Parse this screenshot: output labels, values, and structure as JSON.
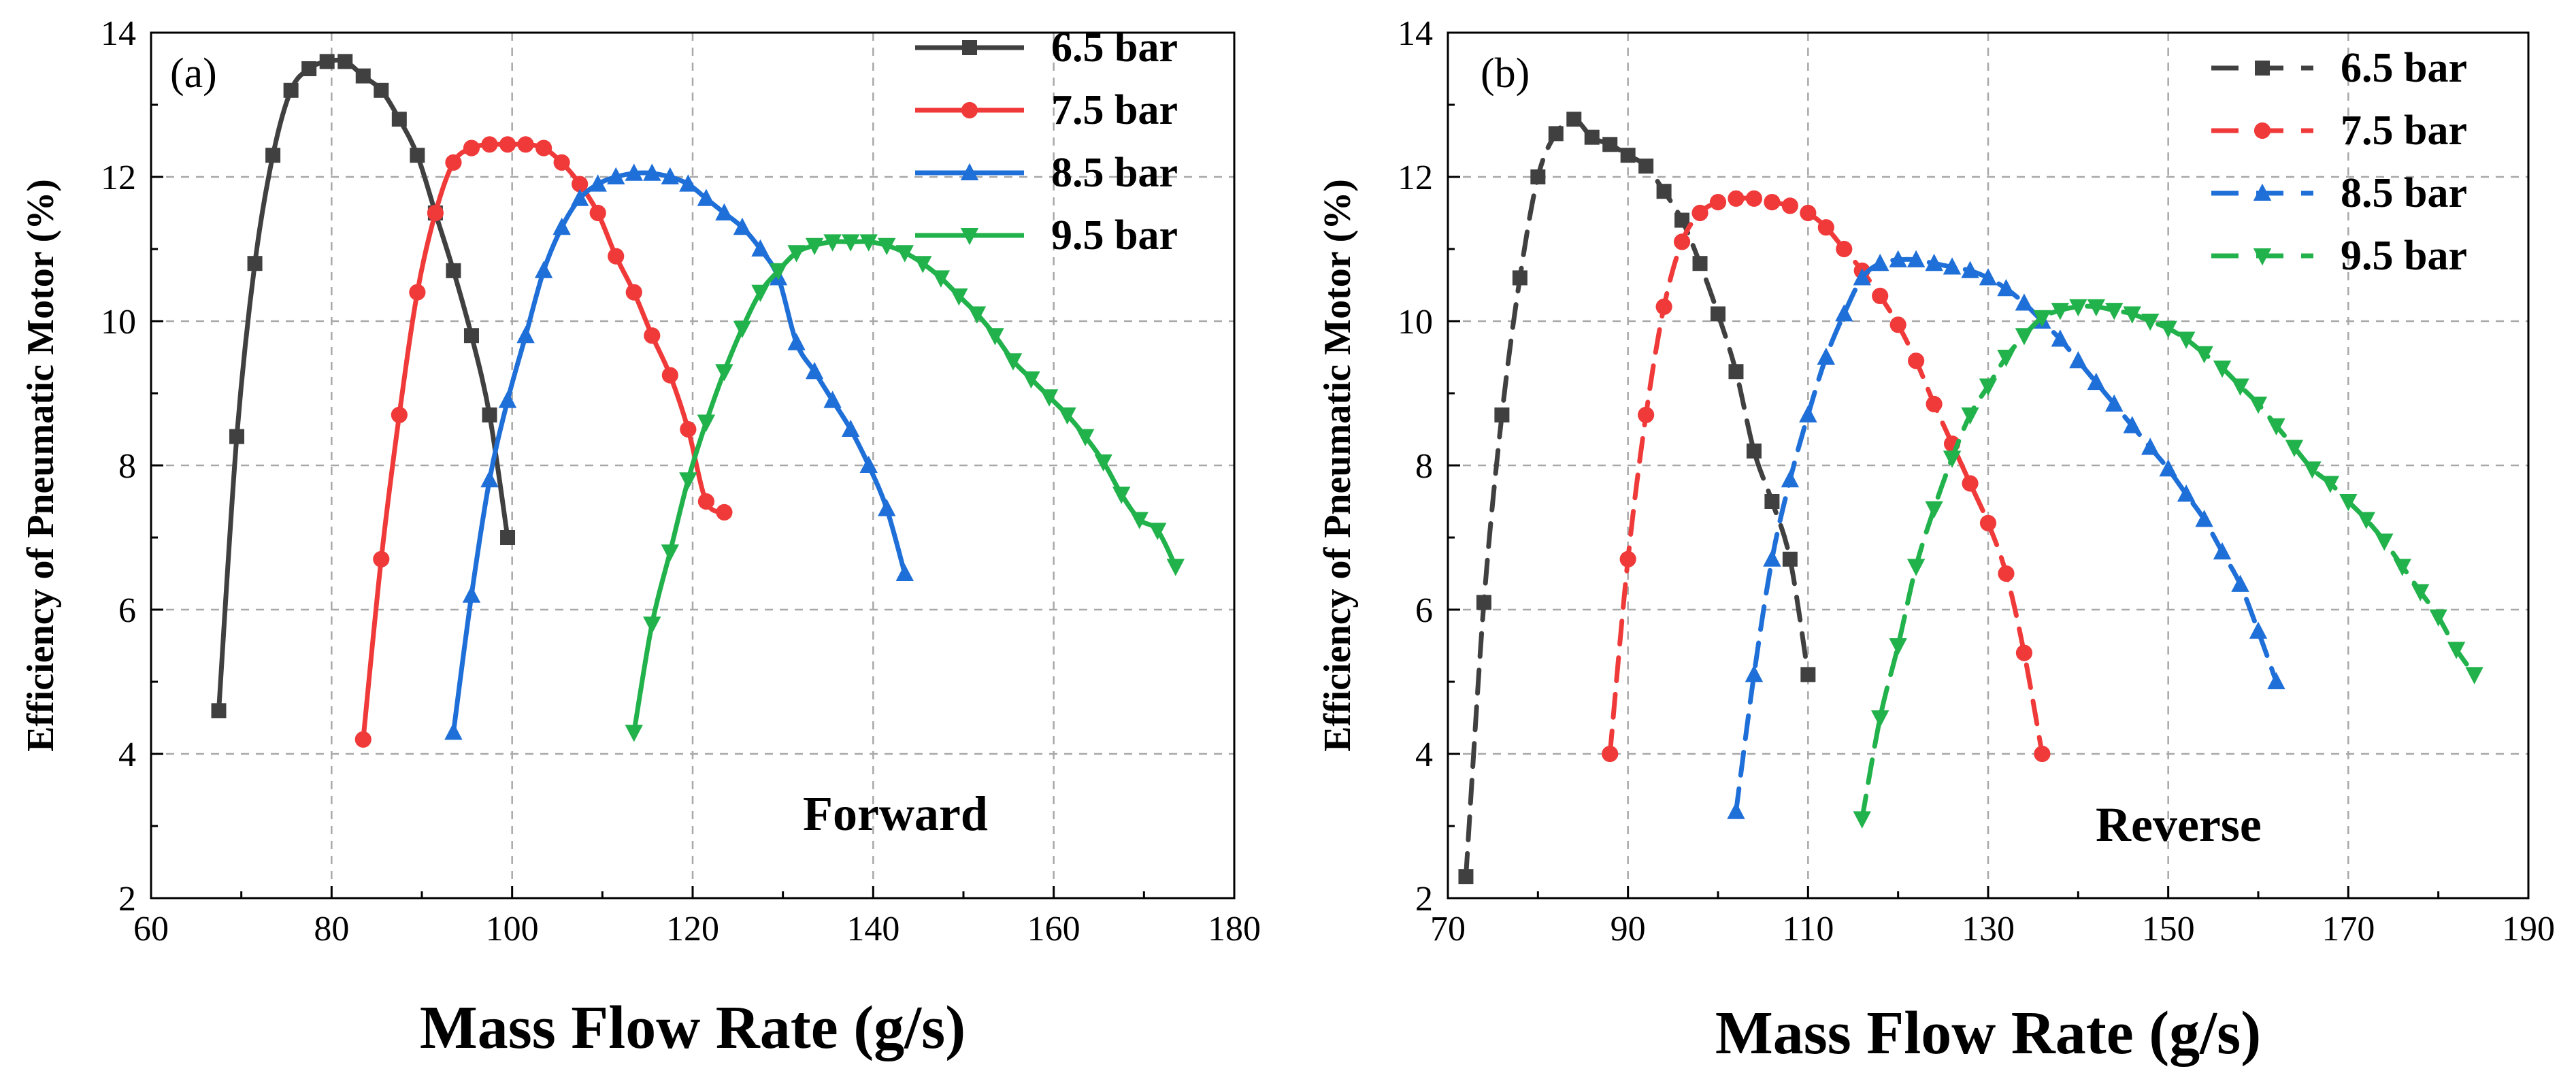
{
  "figure": {
    "panels": [
      "(a)",
      "(b)"
    ]
  },
  "chart_data": [
    {
      "type": "line",
      "panel_label": "(a)",
      "annotation": "Forward",
      "line_style": "solid",
      "xlabel": "Mass Flow Rate (g/s)",
      "ylabel": "Efficiency of Pneumatic Motor (%)",
      "xlim": [
        60,
        180
      ],
      "ylim": [
        2,
        14
      ],
      "xticks": [
        60,
        80,
        100,
        120,
        140,
        160,
        180
      ],
      "xtick_labels": [
        "60",
        "80",
        "100",
        "120",
        "140",
        "160",
        "180"
      ],
      "yticks": [
        2,
        4,
        6,
        8,
        10,
        12,
        14
      ],
      "ytick_labels": [
        "2",
        "4",
        "6",
        "8",
        "10",
        "12",
        "14"
      ],
      "grid": "dashed",
      "legend_position": "top-right",
      "series": [
        {
          "name": "6.5 bar",
          "color": "#404040",
          "marker": "square",
          "x": [
            67.5,
            69.5,
            71.5,
            73.5,
            75.5,
            77.5,
            79.5,
            81.5,
            83.5,
            85.5,
            87.5,
            89.5,
            91.5,
            93.5,
            95.5,
            97.5,
            99.5
          ],
          "y": [
            4.6,
            8.4,
            10.8,
            12.3,
            13.2,
            13.5,
            13.6,
            13.6,
            13.4,
            13.2,
            12.8,
            12.3,
            11.5,
            10.7,
            9.8,
            8.7,
            7.0
          ]
        },
        {
          "name": "7.5 bar",
          "color": "#f03a3a",
          "marker": "circle",
          "x": [
            83.5,
            85.5,
            87.5,
            89.5,
            91.5,
            93.5,
            95.5,
            97.5,
            99.5,
            101.5,
            103.5,
            105.5,
            107.5,
            109.5,
            111.5,
            113.5,
            115.5,
            117.5,
            119.5,
            121.5,
            123.5
          ],
          "y": [
            4.2,
            6.7,
            8.7,
            10.4,
            11.5,
            12.2,
            12.4,
            12.45,
            12.45,
            12.45,
            12.4,
            12.2,
            11.9,
            11.5,
            10.9,
            10.4,
            9.8,
            9.25,
            8.5,
            7.5,
            7.35
          ]
        },
        {
          "name": "8.5 bar",
          "color": "#1f6fd8",
          "marker": "triangle-up",
          "x": [
            93.5,
            95.5,
            97.5,
            99.5,
            101.5,
            103.5,
            105.5,
            107.5,
            109.5,
            111.5,
            113.5,
            115.5,
            117.5,
            119.5,
            121.5,
            123.5,
            125.5,
            127.5,
            129.5,
            131.5,
            133.5,
            135.5,
            137.5,
            139.5,
            141.5,
            143.5
          ],
          "y": [
            4.3,
            6.2,
            7.8,
            8.9,
            9.8,
            10.7,
            11.3,
            11.7,
            11.9,
            12.0,
            12.05,
            12.05,
            12.0,
            11.9,
            11.7,
            11.5,
            11.3,
            11.0,
            10.6,
            9.7,
            9.3,
            8.9,
            8.5,
            8.0,
            7.4,
            6.5
          ]
        },
        {
          "name": "9.5 bar",
          "color": "#21b24b",
          "marker": "triangle-down",
          "x": [
            113.5,
            115.5,
            117.5,
            119.5,
            121.5,
            123.5,
            125.5,
            127.5,
            129.5,
            131.5,
            133.5,
            135.5,
            137.5,
            139.5,
            141.5,
            143.5,
            145.5,
            147.5,
            149.5,
            151.5,
            153.5,
            155.5,
            157.5,
            159.5,
            161.5,
            163.5,
            165.5,
            167.5,
            169.5,
            171.5,
            173.5
          ],
          "y": [
            4.3,
            5.8,
            6.8,
            7.8,
            8.6,
            9.3,
            9.9,
            10.4,
            10.7,
            10.95,
            11.05,
            11.1,
            11.1,
            11.1,
            11.05,
            10.95,
            10.8,
            10.6,
            10.35,
            10.1,
            9.8,
            9.45,
            9.2,
            8.95,
            8.7,
            8.4,
            8.05,
            7.6,
            7.25,
            7.1,
            6.6
          ]
        }
      ]
    },
    {
      "type": "line",
      "panel_label": "(b)",
      "annotation": "Reverse",
      "line_style": "dashed",
      "xlabel": "Mass Flow Rate (g/s)",
      "ylabel": "Efficiency of Pneumatic Motor (%)",
      "xlim": [
        70,
        190
      ],
      "ylim": [
        2,
        14
      ],
      "xticks": [
        70,
        90,
        110,
        130,
        150,
        170,
        190
      ],
      "xtick_labels": [
        "70",
        "90",
        "110",
        "130",
        "150",
        "170",
        "190"
      ],
      "yticks": [
        2,
        4,
        6,
        8,
        10,
        12,
        14
      ],
      "ytick_labels": [
        "2",
        "4",
        "6",
        "8",
        "10",
        "12",
        "14"
      ],
      "grid": "dashed",
      "legend_position": "top-right",
      "series": [
        {
          "name": "6.5 bar",
          "color": "#404040",
          "marker": "square",
          "x": [
            72,
            74,
            76,
            78,
            80,
            82,
            84,
            86,
            88,
            90,
            92,
            94,
            96,
            98,
            100,
            102,
            104,
            106,
            108,
            110
          ],
          "y": [
            2.3,
            6.1,
            8.7,
            10.6,
            12.0,
            12.6,
            12.8,
            12.55,
            12.45,
            12.3,
            12.15,
            11.8,
            11.4,
            10.8,
            10.1,
            9.3,
            8.2,
            7.5,
            6.7,
            5.1
          ]
        },
        {
          "name": "7.5 bar",
          "color": "#f03a3a",
          "marker": "circle",
          "x": [
            88,
            90,
            92,
            94,
            96,
            98,
            100,
            102,
            104,
            106,
            108,
            110,
            112,
            114,
            116,
            118,
            120,
            122,
            124,
            126,
            128,
            130,
            132,
            134,
            136
          ],
          "y": [
            4.0,
            6.7,
            8.7,
            10.2,
            11.1,
            11.5,
            11.65,
            11.7,
            11.7,
            11.65,
            11.6,
            11.5,
            11.3,
            11.0,
            10.7,
            10.35,
            9.95,
            9.45,
            8.85,
            8.3,
            7.75,
            7.2,
            6.5,
            5.4,
            4.0
          ]
        },
        {
          "name": "8.5 bar",
          "color": "#1f6fd8",
          "marker": "triangle-up",
          "x": [
            102,
            104,
            106,
            108,
            110,
            112,
            114,
            116,
            118,
            120,
            122,
            124,
            126,
            128,
            130,
            132,
            134,
            136,
            138,
            140,
            142,
            144,
            146,
            148,
            150,
            152,
            154,
            156,
            158,
            160,
            162
          ],
          "y": [
            3.2,
            5.1,
            6.7,
            7.8,
            8.7,
            9.5,
            10.1,
            10.6,
            10.8,
            10.85,
            10.85,
            10.8,
            10.75,
            10.7,
            10.6,
            10.45,
            10.25,
            10.0,
            9.75,
            9.45,
            9.15,
            8.85,
            8.55,
            8.25,
            7.95,
            7.6,
            7.25,
            6.8,
            6.35,
            5.7,
            5.0
          ]
        },
        {
          "name": "9.5 bar",
          "color": "#21b24b",
          "marker": "triangle-down",
          "x": [
            116,
            118,
            120,
            122,
            124,
            126,
            128,
            130,
            132,
            134,
            136,
            138,
            140,
            142,
            144,
            146,
            148,
            150,
            152,
            154,
            156,
            158,
            160,
            162,
            164,
            166,
            168,
            170,
            172,
            174,
            176,
            178,
            180,
            182,
            184
          ],
          "y": [
            3.1,
            4.5,
            5.5,
            6.6,
            7.4,
            8.1,
            8.7,
            9.1,
            9.5,
            9.8,
            10.05,
            10.15,
            10.2,
            10.2,
            10.15,
            10.1,
            10.0,
            9.9,
            9.75,
            9.55,
            9.35,
            9.1,
            8.85,
            8.55,
            8.25,
            7.95,
            7.75,
            7.5,
            7.25,
            6.95,
            6.6,
            6.25,
            5.9,
            5.45,
            5.1
          ]
        }
      ]
    }
  ]
}
